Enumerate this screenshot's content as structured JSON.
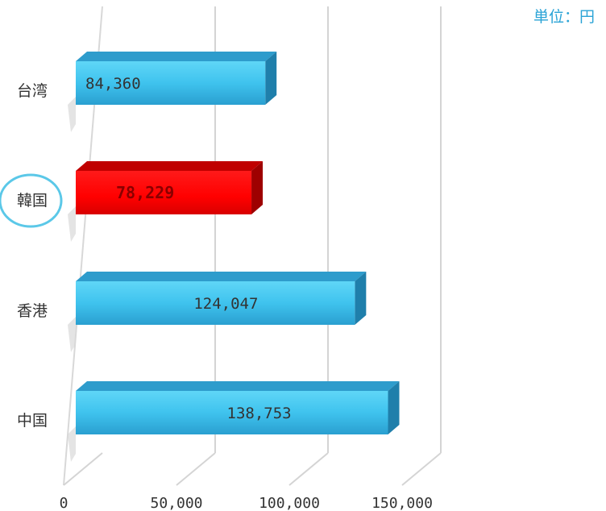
{
  "chart_data": {
    "type": "bar",
    "orientation": "horizontal",
    "unit_label": "単位：円",
    "categories": [
      "台湾",
      "韓国",
      "香港",
      "中国"
    ],
    "values": [
      84360,
      78229,
      124047,
      138753
    ],
    "value_labels": [
      "84,360",
      "78,229",
      "124,047",
      "138,753"
    ],
    "highlight": "韓国",
    "x_ticks": [
      0,
      50000,
      100000,
      150000
    ],
    "x_tick_labels": [
      "0",
      "50,000",
      "100,000",
      "150,000"
    ],
    "xlim": [
      0,
      150000
    ],
    "grid": true,
    "colors": {
      "bar": "#3cc0ea",
      "highlight_bar": "#ff0000",
      "highlight_circle": "#5bc8e8",
      "unit_text": "#2aa3d6"
    }
  }
}
